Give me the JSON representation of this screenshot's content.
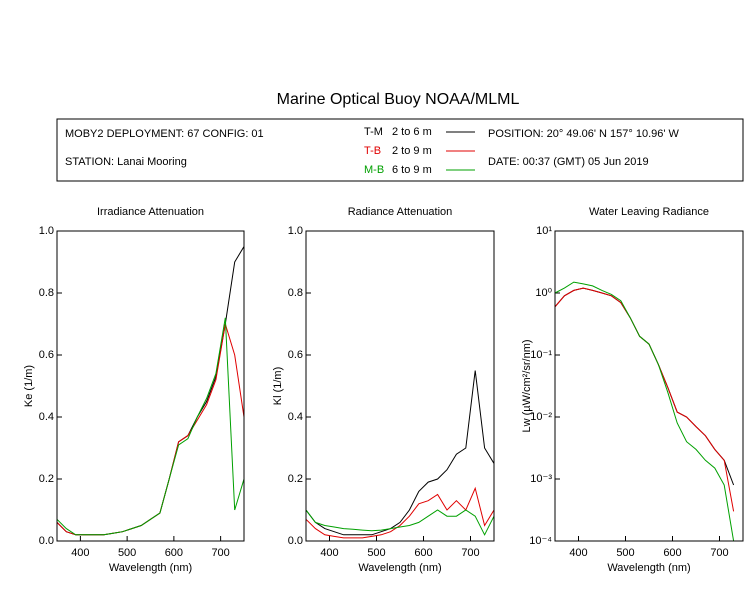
{
  "header": {
    "title": "Marine Optical Buoy NOAA/MLML",
    "deployment": "MOBY2 DEPLOYMENT: 67 CONFIG: 01",
    "station": "STATION: Lanai Mooring",
    "position": "POSITION: 20° 49.06' N   157° 10.96' W",
    "date": "DATE: 00:37 (GMT) 05 Jun 2019",
    "depths": [
      "2 to 6  m",
      "2 to 9  m",
      "6 to 9  m"
    ]
  },
  "chart_data": [
    {
      "type": "line",
      "title": "Irradiance Attenuation",
      "x_label": "Wavelength (nm)",
      "y_label": "Ke  (1/m)",
      "x": [
        350,
        370,
        390,
        410,
        430,
        450,
        470,
        490,
        510,
        530,
        550,
        570,
        590,
        610,
        630,
        650,
        670,
        690,
        710,
        730,
        750
      ],
      "xlim": [
        350,
        750
      ],
      "xticks": [
        400,
        500,
        600,
        700
      ],
      "ylim": [
        0,
        1
      ],
      "yticks": [
        {
          "value": 0,
          "label": "0.0"
        },
        0.2,
        0.4,
        0.6,
        0.8,
        {
          "value": 1,
          "label": "1.0"
        }
      ],
      "series": [
        {
          "name": "T-M",
          "color": "#000000",
          "values": [
            0.06,
            0.03,
            0.02,
            0.02,
            0.02,
            0.02,
            0.025,
            0.03,
            0.04,
            0.05,
            0.07,
            0.09,
            0.2,
            0.32,
            0.34,
            0.4,
            0.45,
            0.53,
            0.7,
            0.9,
            0.95
          ]
        },
        {
          "name": "T-B",
          "color": "#e00000",
          "values": [
            0.06,
            0.03,
            0.02,
            0.02,
            0.02,
            0.02,
            0.025,
            0.03,
            0.04,
            0.05,
            0.07,
            0.09,
            0.2,
            0.32,
            0.34,
            0.39,
            0.44,
            0.52,
            0.7,
            0.6,
            0.4
          ]
        },
        {
          "name": "M-B",
          "color": "#00a000",
          "values": [
            0.07,
            0.04,
            0.02,
            0.02,
            0.02,
            0.02,
            0.025,
            0.03,
            0.04,
            0.05,
            0.07,
            0.09,
            0.2,
            0.31,
            0.33,
            0.4,
            0.46,
            0.54,
            0.72,
            0.1,
            0.2
          ]
        }
      ]
    },
    {
      "type": "line",
      "title": "Radiance Attenuation",
      "x_label": "Wavelength (nm)",
      "y_label": "Kl  (1/m)",
      "x": [
        350,
        370,
        390,
        410,
        430,
        450,
        470,
        490,
        510,
        530,
        550,
        570,
        590,
        610,
        630,
        650,
        670,
        690,
        710,
        730,
        750
      ],
      "xlim": [
        350,
        750
      ],
      "xticks": [
        400,
        500,
        600,
        700
      ],
      "ylim": [
        0,
        1
      ],
      "yticks": [
        {
          "value": 0,
          "label": "0.0"
        },
        0.2,
        0.4,
        0.6,
        0.8,
        {
          "value": 1,
          "label": "1.0"
        }
      ],
      "series": [
        {
          "name": "T-M",
          "color": "#000000",
          "values": [
            0.1,
            0.06,
            0.04,
            0.03,
            0.02,
            0.02,
            0.02,
            0.02,
            0.03,
            0.04,
            0.06,
            0.1,
            0.16,
            0.19,
            0.2,
            0.23,
            0.28,
            0.3,
            0.55,
            0.3,
            0.25
          ]
        },
        {
          "name": "T-B",
          "color": "#e00000",
          "values": [
            0.07,
            0.04,
            0.02,
            0.015,
            0.01,
            0.01,
            0.01,
            0.015,
            0.02,
            0.03,
            0.05,
            0.08,
            0.12,
            0.13,
            0.15,
            0.1,
            0.13,
            0.1,
            0.17,
            0.05,
            0.1
          ]
        },
        {
          "name": "M-B",
          "color": "#00a000",
          "values": [
            0.1,
            0.06,
            0.05,
            0.045,
            0.04,
            0.038,
            0.035,
            0.033,
            0.035,
            0.04,
            0.045,
            0.05,
            0.06,
            0.08,
            0.1,
            0.08,
            0.08,
            0.1,
            0.08,
            0.02,
            0.08
          ]
        }
      ]
    },
    {
      "type": "line",
      "title": "Water Leaving Radiance",
      "x_label": "Wavelength (nm)",
      "y_label": "Lw  (µW/cm²/sr/nm)",
      "log_y": true,
      "x": [
        350,
        370,
        390,
        410,
        430,
        450,
        470,
        490,
        510,
        530,
        550,
        570,
        590,
        610,
        630,
        650,
        670,
        690,
        710,
        730,
        750
      ],
      "xlim": [
        350,
        750
      ],
      "xticks": [
        400,
        500,
        600,
        700
      ],
      "ylim": [
        0.0001,
        10
      ],
      "yticks": [
        {
          "value": 0.0001,
          "label": "10⁻⁴"
        },
        {
          "value": 0.001,
          "label": "10⁻³"
        },
        {
          "value": 0.01,
          "label": "10⁻²"
        },
        {
          "value": 0.1,
          "label": "10⁻¹"
        },
        {
          "value": 1,
          "label": "10⁰"
        },
        {
          "value": 10,
          "label": "10¹"
        }
      ],
      "series": [
        {
          "name": "T-M",
          "color": "#000000",
          "values": [
            0.6,
            0.9,
            1.1,
            1.2,
            1.1,
            1.0,
            0.9,
            0.7,
            0.4,
            0.2,
            0.15,
            0.07,
            0.03,
            0.012,
            0.01,
            0.007,
            0.005,
            0.003,
            0.002,
            0.0008,
            null
          ]
        },
        {
          "name": "T-B",
          "color": "#e00000",
          "values": [
            0.6,
            0.9,
            1.1,
            1.2,
            1.1,
            1.0,
            0.9,
            0.7,
            0.4,
            0.2,
            0.15,
            0.07,
            0.03,
            0.012,
            0.01,
            0.007,
            0.005,
            0.003,
            0.002,
            0.0003,
            null
          ]
        },
        {
          "name": "M-B",
          "color": "#00a000",
          "values": [
            1.0,
            1.2,
            1.5,
            1.4,
            1.3,
            1.1,
            0.95,
            0.75,
            0.4,
            0.2,
            0.15,
            0.07,
            0.025,
            0.008,
            0.004,
            0.003,
            0.002,
            0.0015,
            0.0008,
            0.0001,
            null
          ]
        }
      ]
    }
  ]
}
